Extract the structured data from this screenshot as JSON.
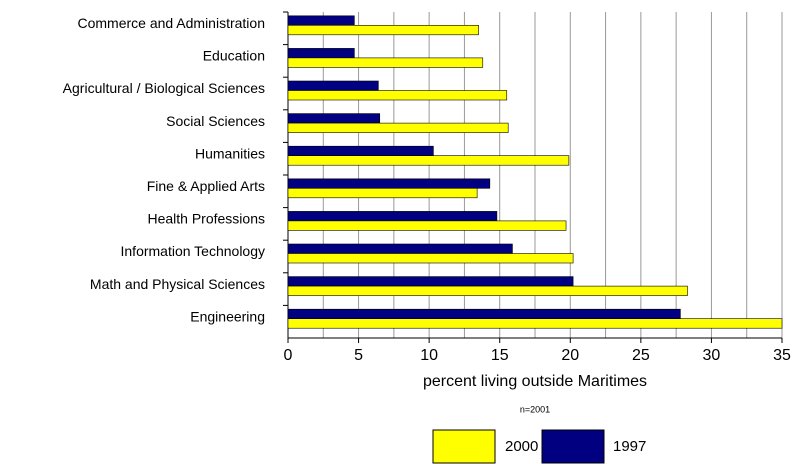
{
  "chart_data": {
    "type": "hbar",
    "categories": [
      "Commerce and Administration",
      "Education",
      "Agricultural / Biological Sciences",
      "Social Sciences",
      "Humanities",
      "Fine & Applied Arts",
      "Health Professions",
      "Information Technology",
      "Math and Physical Sciences",
      "Engineering"
    ],
    "series": [
      {
        "name": "2000",
        "color": "#ffff00",
        "values": [
          13.5,
          13.8,
          15.5,
          15.6,
          19.9,
          13.4,
          19.7,
          20.2,
          28.3,
          35
        ]
      },
      {
        "name": "1997",
        "color": "#000080",
        "values": [
          4.7,
          4.7,
          6.4,
          6.5,
          10.3,
          14.3,
          14.8,
          15.9,
          20.2,
          27.8
        ]
      }
    ],
    "xlim": [
      0,
      35
    ],
    "xticks": [
      0,
      5,
      10,
      15,
      20,
      25,
      30,
      35
    ],
    "minor_grid": [
      2.5,
      7.5,
      12.5,
      17.5,
      22.5,
      27.5,
      32.5
    ],
    "grid": true,
    "xlabel": "percent living outside Maritimes",
    "note": "n=2001",
    "legend": "bottom"
  }
}
